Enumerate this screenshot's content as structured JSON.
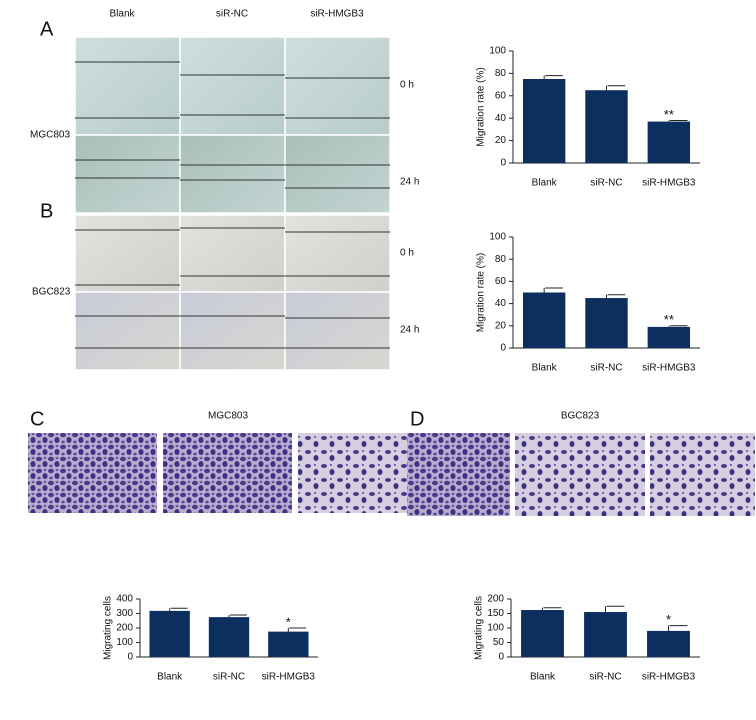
{
  "panel_labels": [
    "A",
    "B",
    "C",
    "D"
  ],
  "wound_healing": {
    "conditions": [
      "Blank",
      "siR-NC",
      "siR-HMGB3"
    ],
    "cell_lines": [
      "MGC803",
      "BGC823"
    ],
    "times": [
      "0 h",
      "24 h"
    ]
  },
  "transwell": {
    "titles": [
      "MGC803",
      "BGC823"
    ]
  },
  "chart_data": [
    {
      "type": "bar",
      "ylabel": "Migration rate (%)",
      "categories": [
        "Blank",
        "siR-NC",
        "siR-HMGB3"
      ],
      "values": [
        75,
        65,
        37
      ],
      "errors": [
        3,
        4,
        1
      ],
      "annotations": [
        {
          "at": 2,
          "text": "**"
        }
      ],
      "color": "#0b2f5e",
      "ylim": [
        0,
        100
      ],
      "yticks": [
        0,
        20,
        40,
        60,
        80,
        100
      ]
    },
    {
      "type": "bar",
      "ylabel": "Migration rate (%)",
      "categories": [
        "Blank",
        "siR-NC",
        "siR-HMGB3"
      ],
      "values": [
        50,
        45,
        19
      ],
      "errors": [
        4,
        3,
        1
      ],
      "annotations": [
        {
          "at": 2,
          "text": "**"
        }
      ],
      "color": "#0b2f5e",
      "ylim": [
        0,
        100
      ],
      "yticks": [
        0,
        20,
        40,
        60,
        80,
        100
      ]
    },
    {
      "type": "bar",
      "ylabel": "Migrating cells",
      "categories": [
        "Blank",
        "siR-NC",
        "siR-HMGB3"
      ],
      "values": [
        318,
        275,
        175
      ],
      "errors": [
        18,
        15,
        25
      ],
      "annotations": [
        {
          "at": 2,
          "text": "*"
        }
      ],
      "color": "#0b2f5e",
      "ylim": [
        0,
        400
      ],
      "yticks": [
        0,
        100,
        200,
        300,
        400
      ]
    },
    {
      "type": "bar",
      "ylabel": "Migrating cells",
      "categories": [
        "Blank",
        "siR-NC",
        "siR-HMGB3"
      ],
      "values": [
        162,
        155,
        90
      ],
      "errors": [
        8,
        20,
        18
      ],
      "annotations": [
        {
          "at": 2,
          "text": "*"
        }
      ],
      "color": "#0b2f5e",
      "ylim": [
        0,
        200
      ],
      "yticks": [
        0,
        50,
        100,
        150,
        200
      ]
    }
  ]
}
